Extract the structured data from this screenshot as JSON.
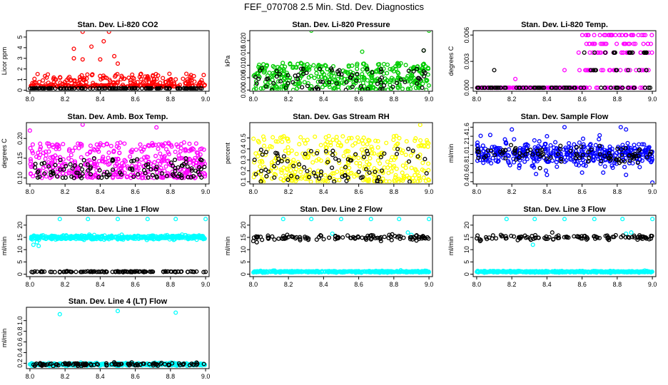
{
  "page_title": "FEF_070708  2.5 Min. Std. Dev. Diagnostics",
  "colors": {
    "red": "#ff0000",
    "green": "#00cc00",
    "magenta": "#ff00ff",
    "yellow": "#ffff00",
    "blue": "#0000ff",
    "cyan": "#00ffff",
    "black": "#000000"
  },
  "chart_data": [
    {
      "type": "scatter",
      "title": "Stan. Dev. Li-820 CO2",
      "ylabel": "Licor ppm",
      "xlim": [
        7.98,
        9.02
      ],
      "ylim": [
        -0.1,
        5.6
      ],
      "xticks": [
        "8.0",
        "8.2",
        "8.4",
        "8.6",
        "8.8",
        "9.0"
      ],
      "yticks": [
        "0",
        "1",
        "2",
        "3",
        "4",
        "5"
      ],
      "series": [
        {
          "color": "red",
          "base": 0.35,
          "spread": 1.2,
          "skew": 3,
          "outliers": [
            [
              8.25,
              3.9
            ],
            [
              8.3,
              5.5
            ],
            [
              8.35,
              4.1
            ],
            [
              8.42,
              4.6
            ],
            [
              8.45,
              5.5
            ],
            [
              8.48,
              3.2
            ],
            [
              8.25,
              3.0
            ],
            [
              8.4,
              2.9
            ],
            [
              8.5,
              2.5
            ],
            [
              8.3,
              2.9
            ]
          ],
          "n": 320
        },
        {
          "color": "black",
          "base": 0.15,
          "spread": 0.04,
          "skew": 1,
          "outliers": [],
          "n": 120
        }
      ]
    },
    {
      "type": "scatter",
      "title": "Stan. Dev. Li-820 Pressure",
      "ylabel": "kPa",
      "xlim": [
        7.98,
        9.02
      ],
      "ylim": [
        -0.0005,
        0.024
      ],
      "xticks": [
        "8.0",
        "8.2",
        "8.4",
        "8.6",
        "8.8",
        "9.0"
      ],
      "yticks": [
        "0.000",
        "0.005",
        "0.010",
        "0.015",
        "0.020"
      ],
      "series": [
        {
          "color": "green",
          "base": 0.0,
          "spread": 0.011,
          "skew": 1,
          "outliers": [
            [
              8.33,
              0.024
            ],
            [
              8.62,
              0.0155
            ],
            [
              9.0,
              0.024
            ],
            [
              8.97,
              0.016
            ]
          ],
          "n": 380
        },
        {
          "color": "black",
          "base": 0.0,
          "spread": 0.009,
          "skew": 1,
          "outliers": [
            [
              8.97,
              0.016
            ]
          ],
          "n": 80
        }
      ]
    },
    {
      "type": "scatter",
      "title": "Stan. Dev. Li-820 Temp.",
      "ylabel": "degrees C",
      "xlim": [
        7.98,
        9.02
      ],
      "ylim": [
        -0.0004,
        0.0065
      ],
      "xticks": [
        "8.0",
        "8.2",
        "8.4",
        "8.6",
        "8.8",
        "9.0"
      ],
      "yticks": [
        "0.000",
        "0.003",
        "0.006"
      ],
      "series": [
        {
          "color": "magenta",
          "base": 0.0,
          "spread": 0.0,
          "skew": 1,
          "levels_after": {
            "x": 8.58,
            "levels": [
              0.0,
              0.002,
              0.004,
              0.005,
              0.006
            ]
          },
          "outliers": [
            [
              8.5,
              0.002
            ],
            [
              8.22,
              0.001
            ]
          ],
          "n": 300
        },
        {
          "color": "black",
          "base": 0.0,
          "spread": 0.0,
          "skew": 1,
          "levels_after": {
            "x": 8.58,
            "levels": [
              0.0,
              0.002,
              0.004
            ]
          },
          "outliers": [
            [
              8.1,
              0.002
            ],
            [
              8.65,
              0.002
            ]
          ],
          "n": 90
        }
      ]
    },
    {
      "type": "scatter",
      "title": "Stan. Dev. Amb. Box Temp.",
      "ylabel": "degrees C",
      "xlim": [
        7.98,
        9.02
      ],
      "ylim": [
        0.085,
        0.24
      ],
      "xticks": [
        "8.0",
        "8.2",
        "8.4",
        "8.6",
        "8.8",
        "9.0"
      ],
      "yticks": [
        "0.10",
        "0.15",
        "0.20"
      ],
      "series": [
        {
          "color": "magenta",
          "base": 0.1,
          "spread": 0.09,
          "skew": 1.4,
          "outliers": [
            [
              8.3,
              0.235
            ],
            [
              8.72,
              0.228
            ],
            [
              8.0,
              0.22
            ]
          ],
          "n": 420
        },
        {
          "color": "black",
          "base": 0.1,
          "spread": 0.05,
          "skew": 1.5,
          "outliers": [],
          "n": 110
        }
      ]
    },
    {
      "type": "scatter",
      "title": "Stan. Dev. Gas Stream RH",
      "ylabel": "percent",
      "xlim": [
        7.98,
        9.02
      ],
      "ylim": [
        0.08,
        0.64
      ],
      "xticks": [
        "8.0",
        "8.2",
        "8.4",
        "8.6",
        "8.8",
        "9.0"
      ],
      "yticks": [
        "0.1",
        "0.2",
        "0.3",
        "0.4",
        "0.5"
      ],
      "series": [
        {
          "color": "yellow",
          "base": 0.1,
          "spread": 0.42,
          "skew": 1.3,
          "outliers": [
            [
              8.95,
              0.62
            ]
          ],
          "n": 360
        },
        {
          "color": "black",
          "base": 0.1,
          "spread": 0.3,
          "skew": 1.2,
          "outliers": [],
          "n": 80
        }
      ]
    },
    {
      "type": "scatter",
      "title": "Stan. Dev. Sample Flow",
      "ylabel": "ml/min",
      "xlim": [
        7.98,
        9.02
      ],
      "ylim": [
        0.35,
        1.7
      ],
      "xticks": [
        "8.0",
        "8.2",
        "8.4",
        "8.6",
        "8.8",
        "9.0"
      ],
      "yticks": [
        "0.4",
        "0.6",
        "0.8",
        "1.0",
        "1.2",
        "1.4",
        "1.6"
      ],
      "series": [
        {
          "color": "blue",
          "center": 1.02,
          "jitter": 0.12,
          "outliers": [
            [
              8.2,
              1.55
            ],
            [
              8.5,
              1.6
            ],
            [
              8.82,
              1.6
            ],
            [
              8.85,
              1.55
            ],
            [
              8.4,
              0.55
            ],
            [
              8.6,
              0.6
            ],
            [
              8.72,
              0.6
            ],
            [
              8.85,
              0.55
            ],
            [
              9.0,
              0.38
            ],
            [
              8.4,
              1.4
            ],
            [
              8.7,
              1.42
            ]
          ],
          "n": 420
        },
        {
          "color": "black",
          "center": 1.0,
          "jitter": 0.1,
          "outliers": [],
          "n": 90
        }
      ]
    },
    {
      "type": "scatter",
      "title": "Stan. Dev. Line 1 Flow",
      "ylabel": "ml/min",
      "xlim": [
        7.98,
        9.02
      ],
      "ylim": [
        -1,
        24
      ],
      "xticks": [
        "8.0",
        "8.2",
        "8.4",
        "8.6",
        "8.8",
        "9.0"
      ],
      "yticks": [
        "0",
        "5",
        "10",
        "15",
        "20"
      ],
      "series": [
        {
          "color": "cyan",
          "center": 15,
          "jitter": 0.4,
          "outliers": [
            [
              8.17,
              22.5
            ],
            [
              8.33,
              22.5
            ],
            [
              8.5,
              22.5
            ],
            [
              8.67,
              22.5
            ],
            [
              8.83,
              22.5
            ],
            [
              9.0,
              22.5
            ],
            [
              8.02,
              12
            ],
            [
              8.04,
              13
            ],
            [
              8.05,
              11.5
            ]
          ],
          "n": 420
        },
        {
          "color": "black",
          "center": 1.0,
          "jitter": 0.1,
          "outliers": [],
          "n": 110
        }
      ]
    },
    {
      "type": "scatter",
      "title": "Stan. Dev. Line 2 Flow",
      "ylabel": "ml/min",
      "xlim": [
        7.98,
        9.02
      ],
      "ylim": [
        -1,
        24
      ],
      "xticks": [
        "8.0",
        "8.2",
        "8.4",
        "8.6",
        "8.8",
        "9.0"
      ],
      "yticks": [
        "0",
        "5",
        "10",
        "15",
        "20"
      ],
      "series": [
        {
          "color": "cyan",
          "center": 1.0,
          "jitter": 0.15,
          "outliers": [
            [
              8.17,
              22.5
            ],
            [
              8.33,
              22.5
            ],
            [
              8.5,
              22.5
            ],
            [
              8.67,
              22.5
            ],
            [
              8.83,
              22.5
            ],
            [
              9.0,
              22.5
            ],
            [
              8.45,
              16.5
            ],
            [
              8.88,
              17
            ],
            [
              8.9,
              16
            ]
          ],
          "n": 420
        },
        {
          "color": "black",
          "center": 15,
          "jitter": 0.5,
          "outliers": [
            [
              8.0,
              13.5
            ],
            [
              8.02,
              13
            ],
            [
              8.05,
              14
            ]
          ],
          "n": 110
        }
      ]
    },
    {
      "type": "scatter",
      "title": "Stan. Dev. Line 3 Flow",
      "ylabel": "ml/min",
      "xlim": [
        7.98,
        9.02
      ],
      "ylim": [
        -1,
        24
      ],
      "xticks": [
        "8.0",
        "8.2",
        "8.4",
        "8.6",
        "8.8",
        "9.0"
      ],
      "yticks": [
        "0",
        "5",
        "10",
        "15",
        "20"
      ],
      "series": [
        {
          "color": "cyan",
          "center": 1.0,
          "jitter": 0.15,
          "outliers": [
            [
              8.17,
              22.5
            ],
            [
              8.33,
              22.5
            ],
            [
              8.5,
              22.5
            ],
            [
              8.67,
              22.5
            ],
            [
              8.83,
              22.5
            ],
            [
              9.0,
              22.5
            ],
            [
              8.32,
              12
            ],
            [
              8.85,
              16.5
            ],
            [
              8.88,
              17
            ]
          ],
          "n": 420
        },
        {
          "color": "black",
          "center": 15,
          "jitter": 0.5,
          "outliers": [
            [
              8.43,
              17
            ],
            [
              8.02,
              13.5
            ]
          ],
          "n": 110
        }
      ]
    },
    {
      "type": "scatter",
      "title": "Stan. Dev. Line 4 (LT) Flow",
      "ylabel": "ml/min",
      "xlim": [
        7.98,
        9.02
      ],
      "ylim": [
        0.1,
        1.25
      ],
      "xticks": [
        "8.0",
        "8.2",
        "8.4",
        "8.6",
        "8.8",
        "9.0"
      ],
      "yticks": [
        "0.2",
        "0.4",
        "0.6",
        "0.8",
        "1.0"
      ],
      "series": [
        {
          "color": "cyan",
          "center": 0.18,
          "jitter": 0.012,
          "outliers": [
            [
              8.17,
              1.12
            ],
            [
              8.5,
              1.18
            ],
            [
              8.83,
              1.15
            ]
          ],
          "n": 420
        },
        {
          "color": "black",
          "center": 0.18,
          "jitter": 0.012,
          "outliers": [],
          "n": 110
        }
      ]
    }
  ]
}
